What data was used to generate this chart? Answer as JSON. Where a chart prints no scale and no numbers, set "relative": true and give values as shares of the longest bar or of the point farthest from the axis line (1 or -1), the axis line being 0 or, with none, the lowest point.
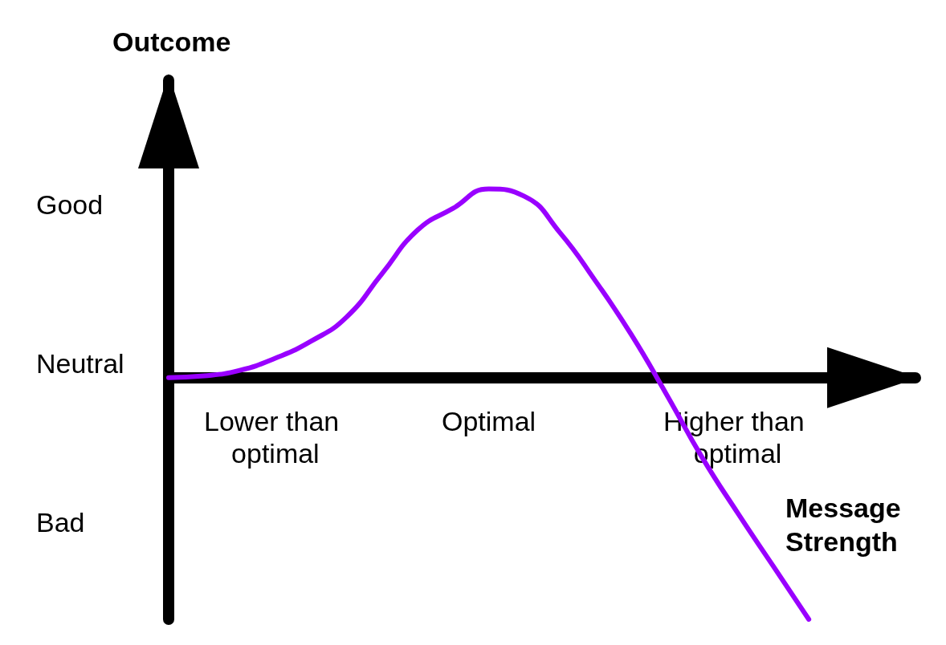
{
  "chart_data": {
    "type": "line",
    "relative": true,
    "xlabel": "Message Strength",
    "ylabel": "Outcome",
    "categories": [
      null,
      null,
      null,
      "Lower than optimal",
      null,
      null,
      null,
      null,
      null,
      "Optimal",
      null,
      null,
      null,
      null,
      null,
      null,
      "Higher than optimal",
      null,
      null,
      null,
      null,
      null
    ],
    "series": [
      {
        "color": "#9900ff",
        "values": [
          0,
          0.007,
          0.03,
          0.08,
          0.15,
          0.25,
          0.43,
          0.61,
          0.7,
          0.78,
          0.75,
          0.6,
          0.4,
          0.18,
          -0.07,
          -0.33,
          -0.56,
          -0.78,
          -1.0,
          null,
          null,
          null
        ]
      }
    ],
    "annotations": [
      "Good",
      "Neutral",
      "Bad"
    ],
    "marker": "none",
    "line_style": "solid",
    "grid": false
  }
}
